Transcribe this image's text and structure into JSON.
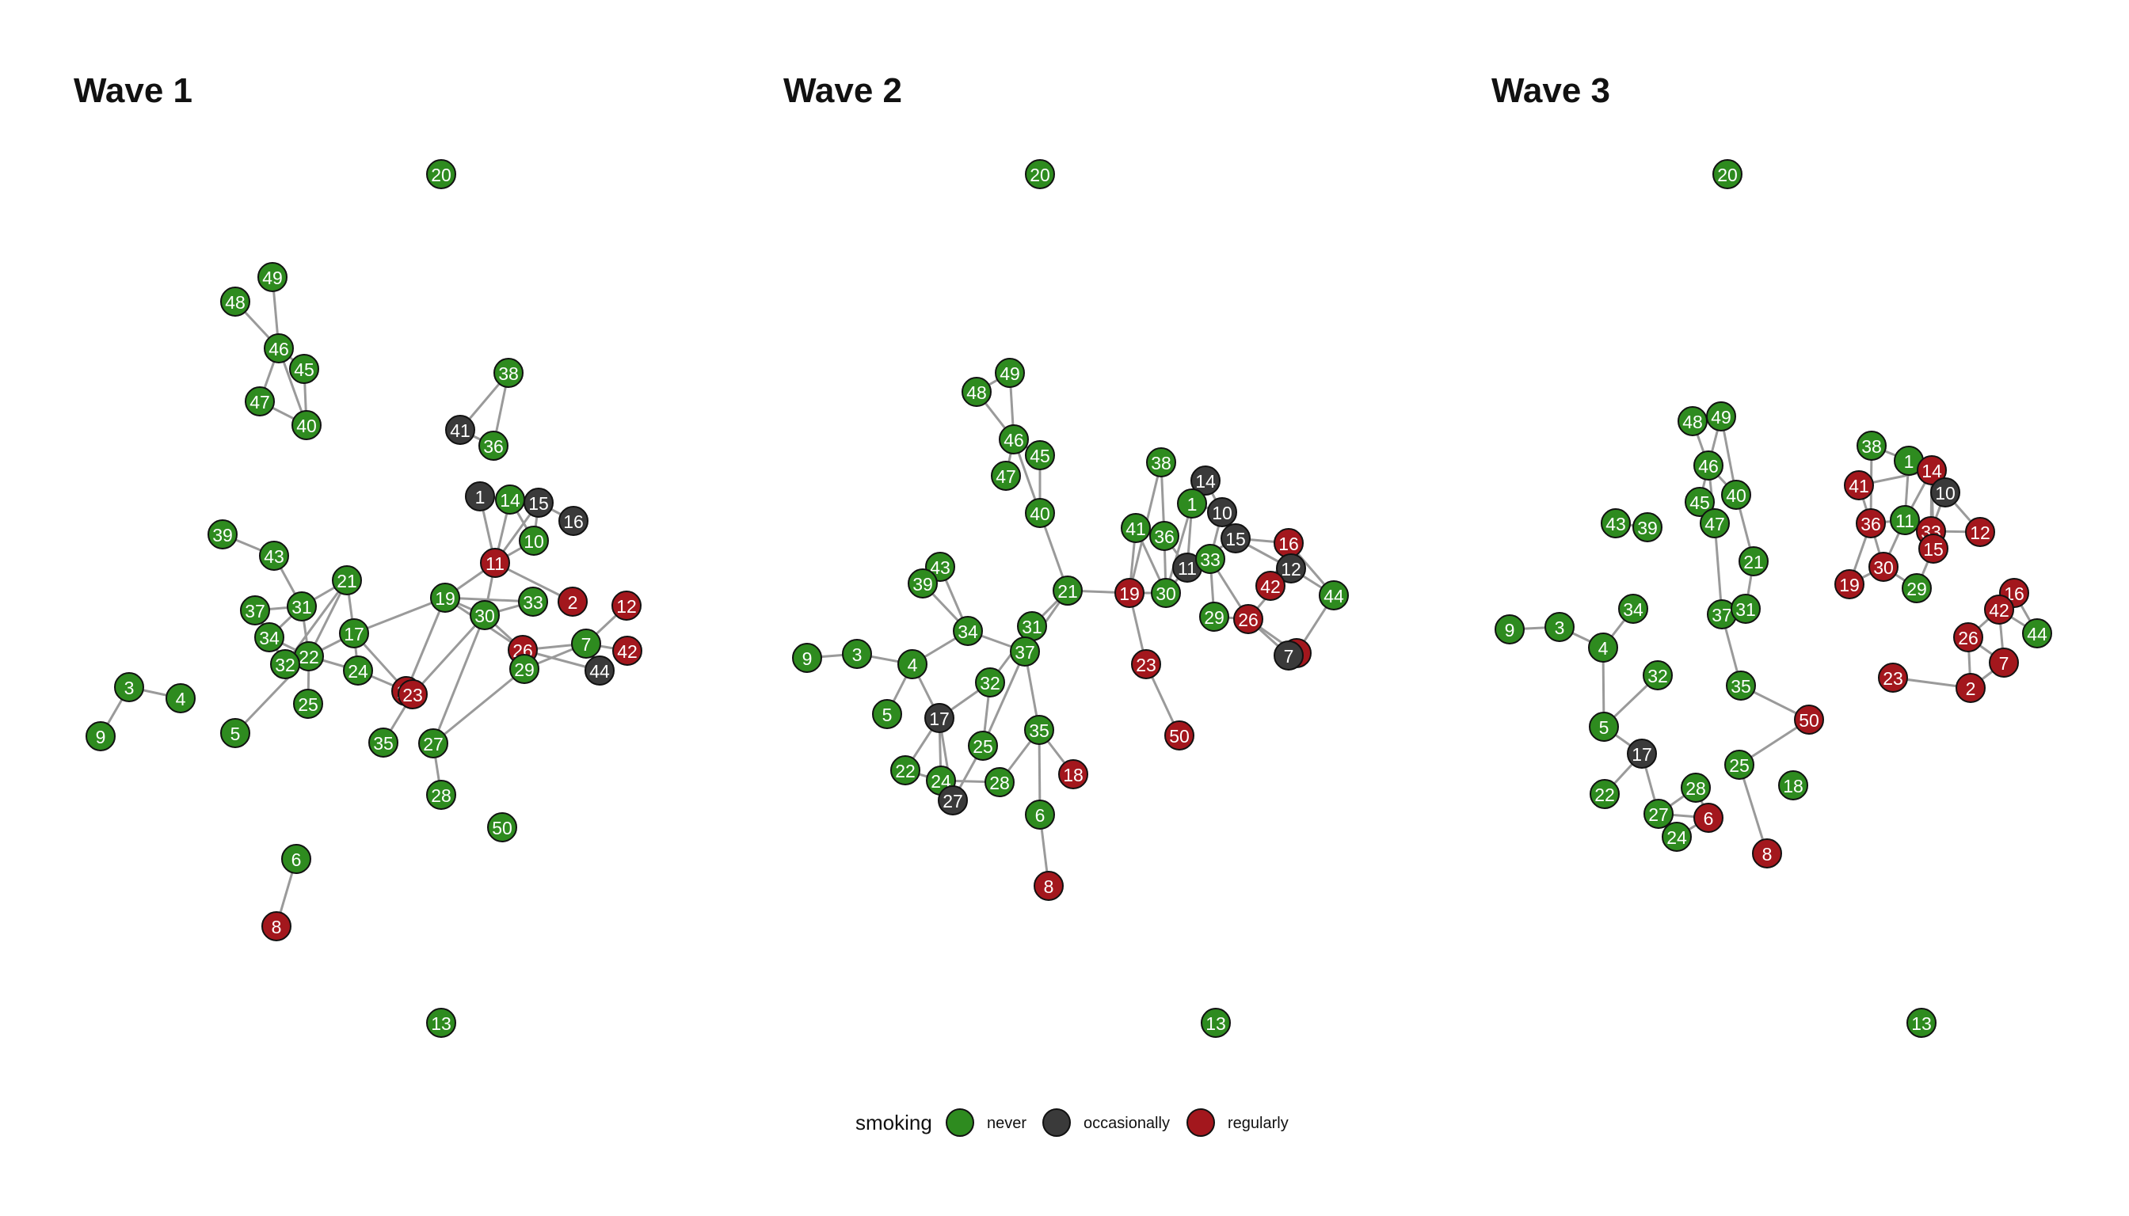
{
  "colors": {
    "never": "#2e8b1f",
    "occasionally": "#3a3a3a",
    "regularly": "#a3171d",
    "edge": "#9a9a9a"
  },
  "legend": {
    "title": "smoking",
    "items": [
      {
        "key": "never",
        "label": "never"
      },
      {
        "key": "occasionally",
        "label": "occasionally"
      },
      {
        "key": "regularly",
        "label": "regularly"
      }
    ]
  },
  "panels": [
    {
      "title": "Wave 1",
      "nodes": [
        [
          "20",
          "never"
        ],
        [
          "49",
          "never"
        ],
        [
          "48",
          "never"
        ],
        [
          "46",
          "never"
        ],
        [
          "45",
          "never"
        ],
        [
          "47",
          "never"
        ],
        [
          "40",
          "never"
        ],
        [
          "38",
          "never"
        ],
        [
          "41",
          "occasionally"
        ],
        [
          "36",
          "never"
        ],
        [
          "1",
          "occasionally"
        ],
        [
          "14",
          "never"
        ],
        [
          "15",
          "occasionally"
        ],
        [
          "16",
          "occasionally"
        ],
        [
          "10",
          "never"
        ],
        [
          "39",
          "never"
        ],
        [
          "43",
          "never"
        ],
        [
          "11",
          "regularly"
        ],
        [
          "21",
          "never"
        ],
        [
          "37",
          "never"
        ],
        [
          "31",
          "never"
        ],
        [
          "19",
          "never"
        ],
        [
          "33",
          "never"
        ],
        [
          "2",
          "regularly"
        ],
        [
          "12",
          "regularly"
        ],
        [
          "30",
          "never"
        ],
        [
          "34",
          "never"
        ],
        [
          "17",
          "never"
        ],
        [
          "22",
          "never"
        ],
        [
          "26",
          "regularly"
        ],
        [
          "7",
          "never"
        ],
        [
          "42",
          "regularly"
        ],
        [
          "32",
          "never"
        ],
        [
          "24",
          "never"
        ],
        [
          "29",
          "never"
        ],
        [
          "44",
          "occasionally"
        ],
        [
          "3",
          "never"
        ],
        [
          "4",
          "never"
        ],
        [
          "18",
          "regularly"
        ],
        [
          "23",
          "regularly"
        ],
        [
          "25",
          "never"
        ],
        [
          "9",
          "never"
        ],
        [
          "5",
          "never"
        ],
        [
          "35",
          "never"
        ],
        [
          "27",
          "never"
        ],
        [
          "28",
          "never"
        ],
        [
          "50",
          "never"
        ],
        [
          "6",
          "never"
        ],
        [
          "8",
          "regularly"
        ],
        [
          "13",
          "never"
        ]
      ],
      "edges": [
        [
          "48",
          "46"
        ],
        [
          "49",
          "46"
        ],
        [
          "46",
          "45"
        ],
        [
          "46",
          "40"
        ],
        [
          "45",
          "40"
        ],
        [
          "47",
          "40"
        ],
        [
          "47",
          "46"
        ],
        [
          "41",
          "38"
        ],
        [
          "41",
          "36"
        ],
        [
          "38",
          "36"
        ],
        [
          "1",
          "11"
        ],
        [
          "14",
          "11"
        ],
        [
          "15",
          "11"
        ],
        [
          "15",
          "16"
        ],
        [
          "14",
          "15"
        ],
        [
          "1",
          "14"
        ],
        [
          "10",
          "11"
        ],
        [
          "10",
          "15"
        ],
        [
          "14",
          "10"
        ],
        [
          "11",
          "30"
        ],
        [
          "11",
          "19"
        ],
        [
          "11",
          "2"
        ],
        [
          "19",
          "26"
        ],
        [
          "19",
          "17"
        ],
        [
          "19",
          "18"
        ],
        [
          "19",
          "33"
        ],
        [
          "30",
          "33"
        ],
        [
          "30",
          "26"
        ],
        [
          "30",
          "27"
        ],
        [
          "30",
          "23"
        ],
        [
          "30",
          "19"
        ],
        [
          "26",
          "7"
        ],
        [
          "26",
          "29"
        ],
        [
          "26",
          "44"
        ],
        [
          "7",
          "12"
        ],
        [
          "7",
          "42"
        ],
        [
          "7",
          "44"
        ],
        [
          "7",
          "29"
        ],
        [
          "29",
          "27"
        ],
        [
          "39",
          "43"
        ],
        [
          "43",
          "31"
        ],
        [
          "37",
          "31"
        ],
        [
          "31",
          "21"
        ],
        [
          "21",
          "22"
        ],
        [
          "21",
          "32"
        ],
        [
          "31",
          "34"
        ],
        [
          "34",
          "22"
        ],
        [
          "37",
          "32"
        ],
        [
          "32",
          "22"
        ],
        [
          "22",
          "25"
        ],
        [
          "22",
          "17"
        ],
        [
          "17",
          "24"
        ],
        [
          "17",
          "18"
        ],
        [
          "22",
          "24"
        ],
        [
          "22",
          "5"
        ],
        [
          "31",
          "22"
        ],
        [
          "34",
          "32"
        ],
        [
          "24",
          "18"
        ],
        [
          "23",
          "35"
        ],
        [
          "27",
          "28"
        ],
        [
          "17",
          "21"
        ],
        [
          "3",
          "4"
        ],
        [
          "3",
          "9"
        ],
        [
          "6",
          "8"
        ]
      ]
    },
    {
      "title": "Wave 2",
      "nodes": [
        [
          "20",
          "never"
        ],
        [
          "49",
          "never"
        ],
        [
          "48",
          "never"
        ],
        [
          "46",
          "never"
        ],
        [
          "45",
          "never"
        ],
        [
          "47",
          "never"
        ],
        [
          "40",
          "never"
        ],
        [
          "38",
          "never"
        ],
        [
          "14",
          "occasionally"
        ],
        [
          "1",
          "never"
        ],
        [
          "10",
          "occasionally"
        ],
        [
          "41",
          "never"
        ],
        [
          "36",
          "never"
        ],
        [
          "15",
          "occasionally"
        ],
        [
          "16",
          "regularly"
        ],
        [
          "11",
          "occasionally"
        ],
        [
          "33",
          "never"
        ],
        [
          "12",
          "occasionally"
        ],
        [
          "42",
          "regularly"
        ],
        [
          "44",
          "never"
        ],
        [
          "43",
          "never"
        ],
        [
          "39",
          "never"
        ],
        [
          "21",
          "never"
        ],
        [
          "19",
          "regularly"
        ],
        [
          "30",
          "never"
        ],
        [
          "29",
          "never"
        ],
        [
          "26",
          "regularly"
        ],
        [
          "34",
          "never"
        ],
        [
          "31",
          "never"
        ],
        [
          "37",
          "never"
        ],
        [
          "2",
          "regularly"
        ],
        [
          "7",
          "occasionally"
        ],
        [
          "9",
          "never"
        ],
        [
          "3",
          "never"
        ],
        [
          "4",
          "never"
        ],
        [
          "23",
          "regularly"
        ],
        [
          "32",
          "never"
        ],
        [
          "5",
          "never"
        ],
        [
          "17",
          "occasionally"
        ],
        [
          "35",
          "never"
        ],
        [
          "50",
          "regularly"
        ],
        [
          "25",
          "never"
        ],
        [
          "22",
          "never"
        ],
        [
          "24",
          "never"
        ],
        [
          "18",
          "regularly"
        ],
        [
          "28",
          "never"
        ],
        [
          "27",
          "occasionally"
        ],
        [
          "6",
          "never"
        ],
        [
          "8",
          "regularly"
        ],
        [
          "13",
          "never"
        ]
      ],
      "edges": [
        [
          "48",
          "46"
        ],
        [
          "49",
          "46"
        ],
        [
          "48",
          "49"
        ],
        [
          "46",
          "45"
        ],
        [
          "46",
          "40"
        ],
        [
          "45",
          "40"
        ],
        [
          "47",
          "46"
        ],
        [
          "40",
          "21"
        ],
        [
          "21",
          "19"
        ],
        [
          "21",
          "31"
        ],
        [
          "21",
          "37"
        ],
        [
          "19",
          "41"
        ],
        [
          "19",
          "38"
        ],
        [
          "19",
          "30"
        ],
        [
          "19",
          "23"
        ],
        [
          "23",
          "50"
        ],
        [
          "38",
          "36"
        ],
        [
          "41",
          "36"
        ],
        [
          "41",
          "30"
        ],
        [
          "36",
          "30"
        ],
        [
          "30",
          "11"
        ],
        [
          "30",
          "1"
        ],
        [
          "1",
          "14"
        ],
        [
          "1",
          "10"
        ],
        [
          "1",
          "11"
        ],
        [
          "14",
          "10"
        ],
        [
          "10",
          "15"
        ],
        [
          "15",
          "16"
        ],
        [
          "15",
          "12"
        ],
        [
          "15",
          "11"
        ],
        [
          "11",
          "33"
        ],
        [
          "33",
          "29"
        ],
        [
          "33",
          "26"
        ],
        [
          "33",
          "10"
        ],
        [
          "16",
          "42"
        ],
        [
          "16",
          "44"
        ],
        [
          "12",
          "44"
        ],
        [
          "12",
          "42"
        ],
        [
          "12",
          "26"
        ],
        [
          "26",
          "2"
        ],
        [
          "26",
          "7"
        ],
        [
          "44",
          "2"
        ],
        [
          "29",
          "26"
        ],
        [
          "36",
          "11"
        ],
        [
          "43",
          "39"
        ],
        [
          "43",
          "34"
        ],
        [
          "39",
          "34"
        ],
        [
          "34",
          "37"
        ],
        [
          "34",
          "4"
        ],
        [
          "37",
          "31"
        ],
        [
          "31",
          "32"
        ],
        [
          "37",
          "35"
        ],
        [
          "3",
          "9"
        ],
        [
          "3",
          "4"
        ],
        [
          "4",
          "5"
        ],
        [
          "4",
          "17"
        ],
        [
          "32",
          "17"
        ],
        [
          "17",
          "22"
        ],
        [
          "17",
          "24"
        ],
        [
          "17",
          "27"
        ],
        [
          "37",
          "25"
        ],
        [
          "25",
          "27"
        ],
        [
          "24",
          "28"
        ],
        [
          "24",
          "27"
        ],
        [
          "35",
          "28"
        ],
        [
          "35",
          "18"
        ],
        [
          "35",
          "6"
        ],
        [
          "6",
          "8"
        ],
        [
          "32",
          "25"
        ],
        [
          "22",
          "24"
        ]
      ]
    },
    {
      "title": "Wave 3",
      "nodes": [
        [
          "20",
          "never"
        ],
        [
          "48",
          "never"
        ],
        [
          "49",
          "never"
        ],
        [
          "46",
          "never"
        ],
        [
          "40",
          "never"
        ],
        [
          "45",
          "never"
        ],
        [
          "43",
          "never"
        ],
        [
          "39",
          "never"
        ],
        [
          "47",
          "never"
        ],
        [
          "21",
          "never"
        ],
        [
          "37",
          "never"
        ],
        [
          "31",
          "never"
        ],
        [
          "9",
          "never"
        ],
        [
          "3",
          "never"
        ],
        [
          "34",
          "never"
        ],
        [
          "4",
          "never"
        ],
        [
          "32",
          "never"
        ],
        [
          "35",
          "never"
        ],
        [
          "50",
          "regularly"
        ],
        [
          "5",
          "never"
        ],
        [
          "17",
          "occasionally"
        ],
        [
          "25",
          "never"
        ],
        [
          "22",
          "never"
        ],
        [
          "28",
          "never"
        ],
        [
          "18",
          "never"
        ],
        [
          "27",
          "never"
        ],
        [
          "6",
          "regularly"
        ],
        [
          "24",
          "never"
        ],
        [
          "8",
          "regularly"
        ],
        [
          "38",
          "never"
        ],
        [
          "1",
          "never"
        ],
        [
          "14",
          "regularly"
        ],
        [
          "41",
          "regularly"
        ],
        [
          "10",
          "occasionally"
        ],
        [
          "36",
          "regularly"
        ],
        [
          "11",
          "never"
        ],
        [
          "33",
          "regularly"
        ],
        [
          "12",
          "regularly"
        ],
        [
          "15",
          "regularly"
        ],
        [
          "30",
          "regularly"
        ],
        [
          "19",
          "regularly"
        ],
        [
          "29",
          "never"
        ],
        [
          "16",
          "regularly"
        ],
        [
          "42",
          "regularly"
        ],
        [
          "44",
          "never"
        ],
        [
          "26",
          "regularly"
        ],
        [
          "7",
          "regularly"
        ],
        [
          "23",
          "regularly"
        ],
        [
          "2",
          "regularly"
        ],
        [
          "13",
          "never"
        ]
      ],
      "edges": [
        [
          "48",
          "49"
        ],
        [
          "48",
          "46"
        ],
        [
          "49",
          "46"
        ],
        [
          "49",
          "40"
        ],
        [
          "46",
          "40"
        ],
        [
          "46",
          "45"
        ],
        [
          "45",
          "47"
        ],
        [
          "46",
          "47"
        ],
        [
          "40",
          "21"
        ],
        [
          "47",
          "37"
        ],
        [
          "43",
          "39"
        ],
        [
          "21",
          "31"
        ],
        [
          "37",
          "31"
        ],
        [
          "37",
          "35"
        ],
        [
          "35",
          "50"
        ],
        [
          "50",
          "25"
        ],
        [
          "25",
          "8"
        ],
        [
          "9",
          "3"
        ],
        [
          "3",
          "4"
        ],
        [
          "4",
          "34"
        ],
        [
          "4",
          "5"
        ],
        [
          "32",
          "5"
        ],
        [
          "5",
          "17"
        ],
        [
          "17",
          "22"
        ],
        [
          "17",
          "27"
        ],
        [
          "27",
          "24"
        ],
        [
          "27",
          "28"
        ],
        [
          "27",
          "6"
        ],
        [
          "24",
          "6"
        ],
        [
          "28",
          "6"
        ],
        [
          "38",
          "36"
        ],
        [
          "38",
          "1"
        ],
        [
          "1",
          "14"
        ],
        [
          "1",
          "11"
        ],
        [
          "14",
          "10"
        ],
        [
          "14",
          "33"
        ],
        [
          "14",
          "15"
        ],
        [
          "10",
          "12"
        ],
        [
          "10",
          "33"
        ],
        [
          "41",
          "36"
        ],
        [
          "41",
          "14"
        ],
        [
          "36",
          "30"
        ],
        [
          "36",
          "11"
        ],
        [
          "11",
          "33"
        ],
        [
          "11",
          "30"
        ],
        [
          "33",
          "15"
        ],
        [
          "33",
          "12"
        ],
        [
          "15",
          "29"
        ],
        [
          "30",
          "29"
        ],
        [
          "19",
          "30"
        ],
        [
          "19",
          "36"
        ],
        [
          "11",
          "14"
        ],
        [
          "16",
          "42"
        ],
        [
          "16",
          "44"
        ],
        [
          "42",
          "26"
        ],
        [
          "42",
          "44"
        ],
        [
          "42",
          "7"
        ],
        [
          "26",
          "7"
        ],
        [
          "26",
          "2"
        ],
        [
          "7",
          "2"
        ],
        [
          "23",
          "2"
        ]
      ]
    }
  ]
}
